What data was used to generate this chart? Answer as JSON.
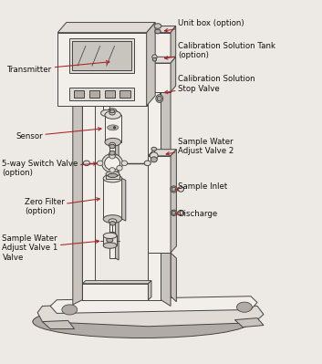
{
  "background_color": "#ede9e4",
  "fig_width": 3.53,
  "fig_height": 3.99,
  "dpi": 100,
  "font_size": 6.2,
  "arrow_color": "#aa2222",
  "text_color": "#111111",
  "ec": "#444444",
  "lw": 0.7,
  "labels_left": [
    {
      "text": "Transmitter",
      "txt": [
        0.035,
        0.81
      ],
      "arr": [
        0.34,
        0.81
      ]
    },
    {
      "text": "Sensor",
      "txt": [
        0.055,
        0.627
      ],
      "arr": [
        0.37,
        0.627
      ]
    },
    {
      "text": "5-way Switch Valve\n(option)",
      "txt": [
        0.01,
        0.535
      ],
      "arr": [
        0.31,
        0.54
      ]
    },
    {
      "text": "Zero Filter\n(option)",
      "txt": [
        0.09,
        0.43
      ],
      "arr": [
        0.345,
        0.44
      ]
    },
    {
      "text": "Sample Water\nAdjust Valve 1\nValve",
      "txt": [
        0.01,
        0.315
      ],
      "arr": [
        0.32,
        0.328
      ]
    }
  ],
  "labels_right": [
    {
      "text": "Unit box (option)",
      "txt": [
        0.59,
        0.94
      ],
      "arr": [
        0.51,
        0.92
      ]
    },
    {
      "text": "Calibration Solution Tank\n(option)",
      "txt": [
        0.59,
        0.865
      ],
      "arr": [
        0.51,
        0.845
      ]
    },
    {
      "text": "Calibration Solution\nStop Valve",
      "txt": [
        0.59,
        0.77
      ],
      "arr": [
        0.51,
        0.745
      ]
    },
    {
      "text": "Sample Water\nAdjust Valve 2",
      "txt": [
        0.59,
        0.59
      ],
      "arr": [
        0.53,
        0.57
      ]
    },
    {
      "text": "Sample Inlet",
      "txt": [
        0.59,
        0.49
      ],
      "arr": [
        0.53,
        0.47
      ]
    },
    {
      "text": "Discharge",
      "txt": [
        0.59,
        0.415
      ],
      "arr": [
        0.53,
        0.402
      ]
    }
  ]
}
